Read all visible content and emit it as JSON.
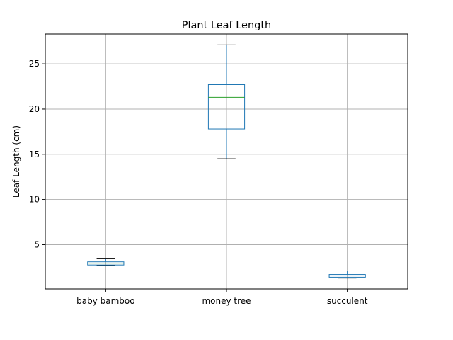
{
  "chart_data": {
    "type": "box",
    "title": "Plant Leaf Length",
    "xlabel": "",
    "ylabel": "Leaf Length (cm)",
    "ylim": [
      0.1,
      28.3
    ],
    "yticks": [
      5,
      10,
      15,
      20,
      25
    ],
    "grid": true,
    "categories": [
      "baby bamboo",
      "money tree",
      "succulent"
    ],
    "boxes": [
      {
        "category": "baby bamboo",
        "whisker_low": 2.7,
        "q1": 2.75,
        "median": 2.95,
        "q3": 3.1,
        "whisker_high": 3.5
      },
      {
        "category": "money tree",
        "whisker_low": 14.5,
        "q1": 17.8,
        "median": 21.3,
        "q3": 22.7,
        "whisker_high": 27.1
      },
      {
        "category": "succulent",
        "whisker_low": 1.3,
        "q1": 1.4,
        "median": 1.55,
        "q3": 1.7,
        "whisker_high": 2.1
      }
    ],
    "colors": {
      "box": "#1f77b4",
      "median": "#2ca02c",
      "whisker": "#1f77b4",
      "cap": "#000000",
      "grid": "#b0b0b0"
    }
  }
}
